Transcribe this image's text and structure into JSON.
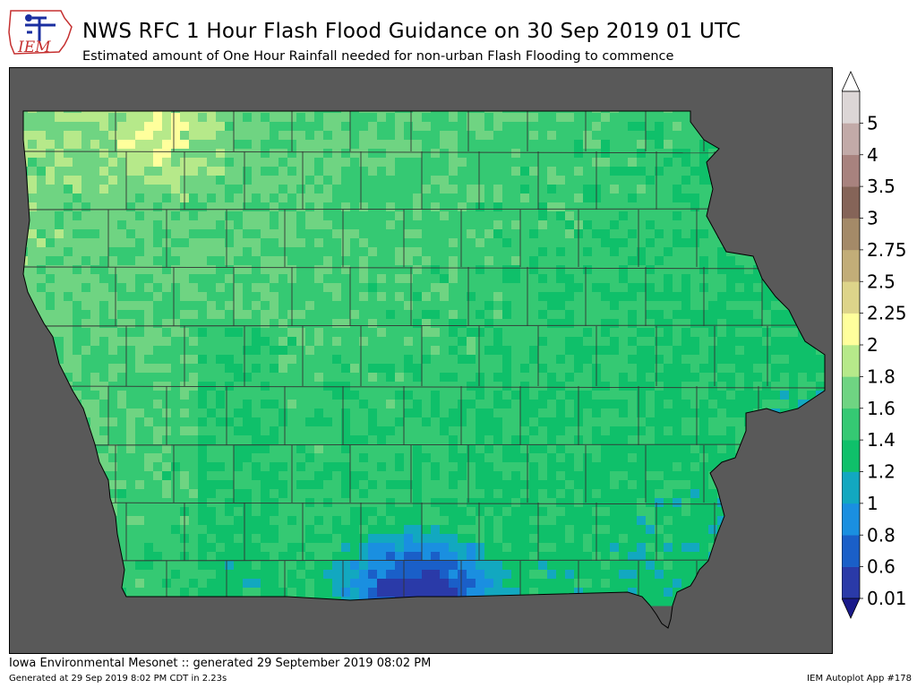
{
  "header": {
    "logo_text": "IEM",
    "title": "NWS RFC 1 Hour Flash Flood Guidance on 30 Sep 2019 01 UTC",
    "subtitle": "Estimated amount of One Hour Rainfall needed for non-urban Flash Flooding to commence"
  },
  "map": {
    "region": "Iowa",
    "background_color": "#595959",
    "county_line_color": "#333333"
  },
  "legend": {
    "levels": [
      "0.01",
      "0.6",
      "0.8",
      "1",
      "1.2",
      "1.4",
      "1.6",
      "1.8",
      "2",
      "2.25",
      "2.5",
      "2.75",
      "3",
      "3.5",
      "4",
      "5"
    ],
    "colors": [
      "#2a3aa8",
      "#1a5fc8",
      "#1a8fe0",
      "#12a8c0",
      "#0fc06a",
      "#35c973",
      "#6fd482",
      "#b6e98a",
      "#ffff9c",
      "#ddd48a",
      "#c2ad78",
      "#a48a68",
      "#856458",
      "#a8827e",
      "#c2aaa8",
      "#dcd6d6"
    ],
    "under_color": "#1a1a8a",
    "over_color": "#ffffff"
  },
  "footer": {
    "main": "Iowa Environmental Mesonet :: generated 29 September 2019 08:02 PM",
    "generated": "Generated at 29 Sep 2019 8:02 PM CDT in 2.23s",
    "app": "IEM Autoplot App #178"
  }
}
